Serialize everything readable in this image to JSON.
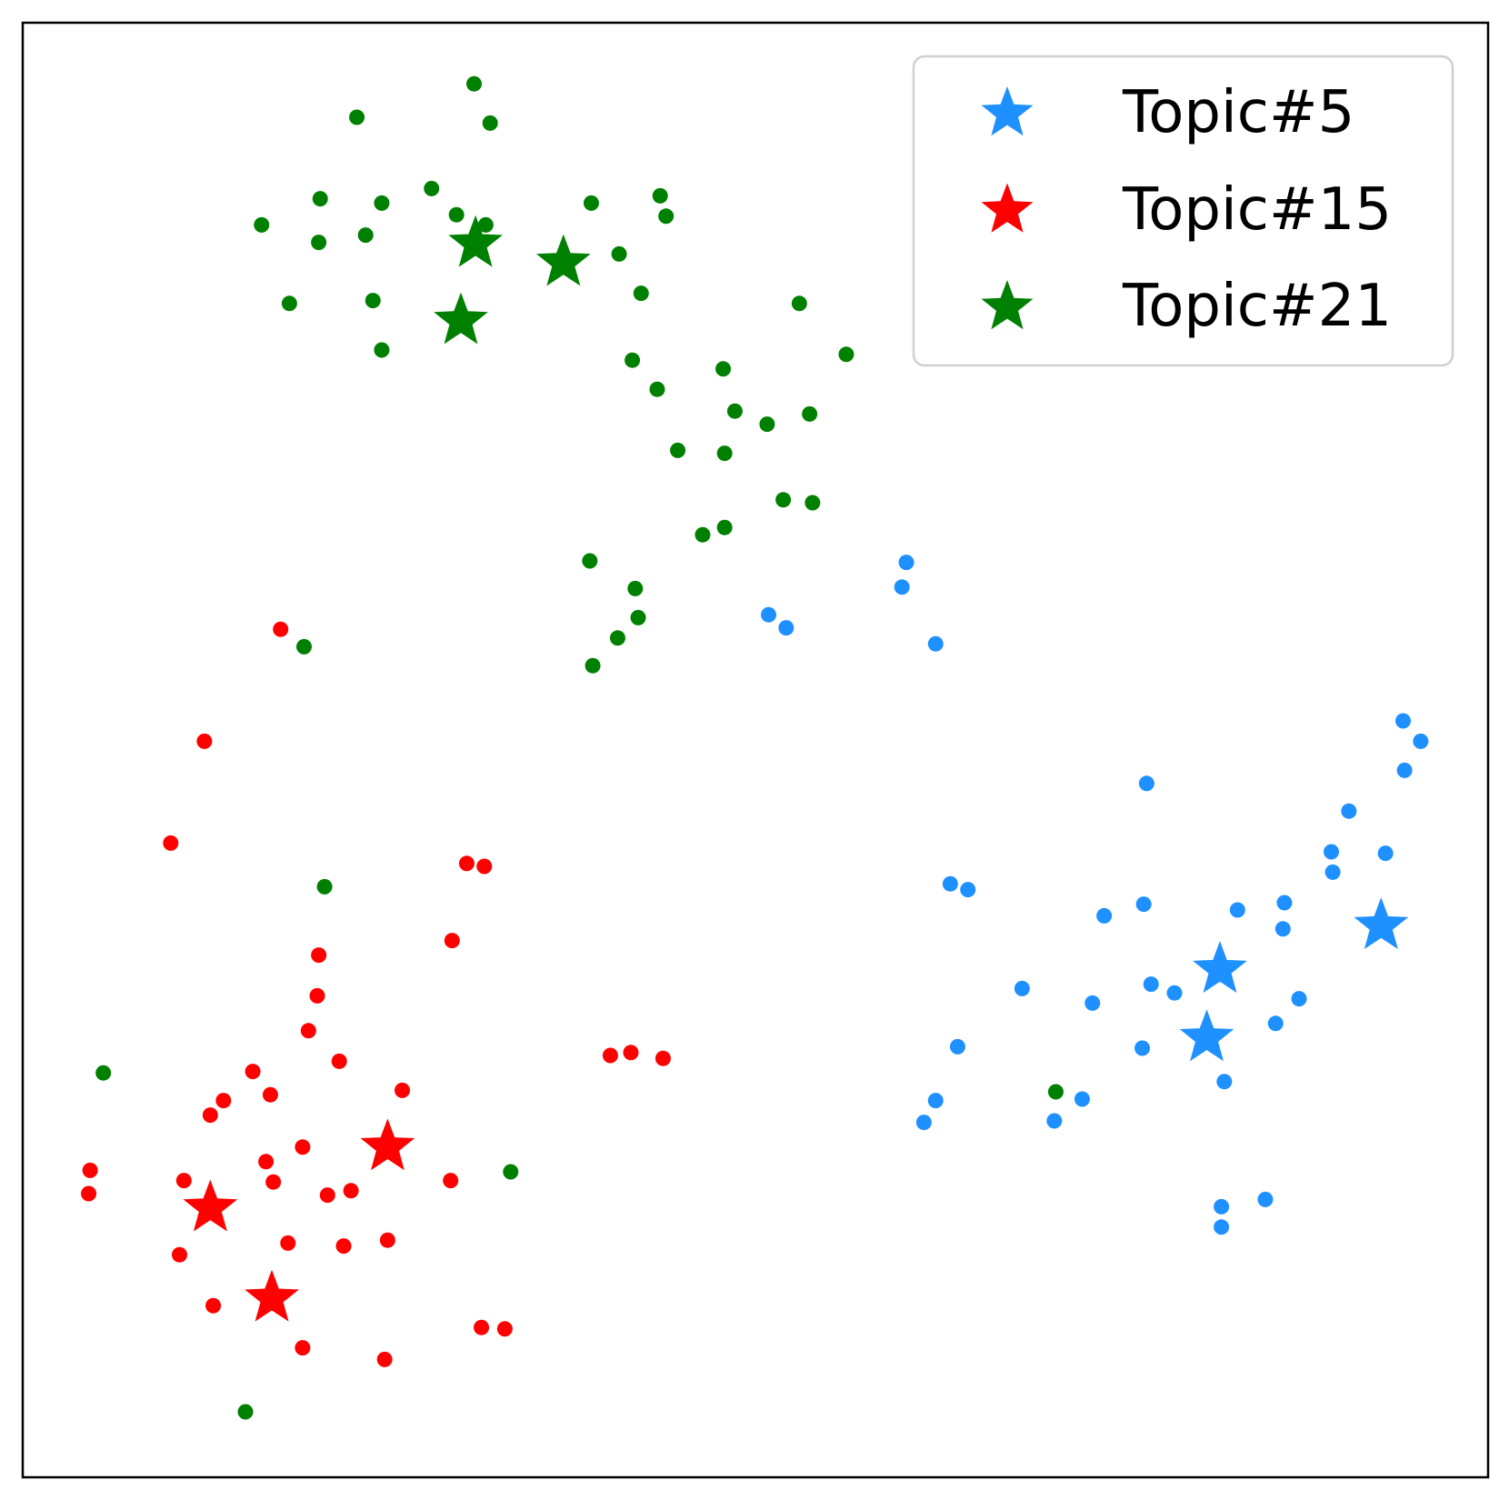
{
  "chart_data": {
    "type": "scatter",
    "title": "",
    "xlabel": "",
    "ylabel": "",
    "xlim": [
      0,
      100
    ],
    "ylim": [
      0,
      100
    ],
    "grid": false,
    "axes_ticks": false,
    "legend": {
      "placement": "top-right",
      "marker": "star"
    },
    "series": [
      {
        "name": "Topic#5",
        "color": "#1e90ff",
        "centroids": [
          [
            81.7,
            34.9
          ],
          [
            80.8,
            30.2
          ],
          [
            92.7,
            37.9
          ]
        ],
        "points": [
          [
            60.3,
            62.9
          ],
          [
            60.0,
            61.2
          ],
          [
            62.3,
            57.3
          ],
          [
            50.9,
            59.3
          ],
          [
            52.1,
            58.4
          ],
          [
            94.2,
            52.0
          ],
          [
            95.4,
            50.6
          ],
          [
            94.3,
            48.6
          ],
          [
            76.7,
            47.7
          ],
          [
            90.5,
            45.8
          ],
          [
            89.3,
            43.0
          ],
          [
            89.4,
            41.6
          ],
          [
            93.0,
            42.9
          ],
          [
            63.3,
            40.8
          ],
          [
            64.5,
            40.4
          ],
          [
            76.5,
            39.4
          ],
          [
            73.8,
            38.6
          ],
          [
            82.9,
            39.0
          ],
          [
            86.1,
            39.5
          ],
          [
            86.0,
            37.7
          ],
          [
            68.2,
            33.6
          ],
          [
            78.6,
            33.3
          ],
          [
            77.0,
            33.9
          ],
          [
            73.0,
            32.6
          ],
          [
            87.1,
            32.9
          ],
          [
            85.5,
            31.2
          ],
          [
            63.8,
            29.6
          ],
          [
            76.4,
            29.5
          ],
          [
            82.0,
            27.2
          ],
          [
            62.3,
            25.9
          ],
          [
            61.5,
            24.4
          ],
          [
            72.3,
            26.0
          ],
          [
            70.4,
            24.5
          ],
          [
            81.8,
            18.6
          ],
          [
            84.8,
            19.1
          ],
          [
            81.8,
            17.2
          ]
        ]
      },
      {
        "name": "Topic#15",
        "color": "#ff0000",
        "centroids": [
          [
            24.9,
            22.7
          ],
          [
            12.8,
            18.5
          ],
          [
            17.0,
            12.3
          ]
        ],
        "points": [
          [
            17.6,
            58.3
          ],
          [
            12.4,
            50.6
          ],
          [
            10.1,
            43.6
          ],
          [
            30.3,
            42.2
          ],
          [
            31.5,
            42.0
          ],
          [
            29.3,
            36.9
          ],
          [
            20.2,
            35.9
          ],
          [
            20.1,
            33.1
          ],
          [
            19.5,
            30.7
          ],
          [
            15.7,
            27.9
          ],
          [
            21.6,
            28.6
          ],
          [
            40.1,
            29.0
          ],
          [
            41.5,
            29.2
          ],
          [
            43.7,
            28.8
          ],
          [
            25.9,
            26.6
          ],
          [
            16.9,
            26.3
          ],
          [
            13.7,
            25.9
          ],
          [
            12.8,
            24.9
          ],
          [
            19.1,
            22.7
          ],
          [
            16.6,
            21.7
          ],
          [
            4.6,
            21.1
          ],
          [
            4.5,
            19.5
          ],
          [
            11.0,
            20.4
          ],
          [
            17.1,
            20.3
          ],
          [
            29.2,
            20.4
          ],
          [
            20.8,
            19.4
          ],
          [
            22.4,
            19.7
          ],
          [
            18.1,
            16.1
          ],
          [
            21.9,
            15.9
          ],
          [
            24.9,
            16.3
          ],
          [
            10.7,
            15.3
          ],
          [
            13.0,
            11.8
          ],
          [
            31.3,
            10.3
          ],
          [
            32.9,
            10.2
          ],
          [
            19.1,
            8.9
          ],
          [
            24.7,
            8.1
          ]
        ]
      },
      {
        "name": "Topic#21",
        "color": "#008000",
        "centroids": [
          [
            30.9,
            84.8
          ],
          [
            36.9,
            83.5
          ],
          [
            29.9,
            79.5
          ]
        ],
        "points": [
          [
            30.8,
            95.8
          ],
          [
            22.8,
            93.5
          ],
          [
            31.9,
            93.1
          ],
          [
            20.3,
            87.9
          ],
          [
            24.5,
            87.6
          ],
          [
            27.9,
            88.6
          ],
          [
            29.6,
            86.8
          ],
          [
            31.6,
            86.1
          ],
          [
            38.8,
            87.6
          ],
          [
            43.5,
            88.1
          ],
          [
            43.9,
            86.7
          ],
          [
            16.3,
            86.1
          ],
          [
            23.4,
            85.4
          ],
          [
            20.2,
            84.9
          ],
          [
            40.7,
            84.1
          ],
          [
            42.2,
            81.4
          ],
          [
            18.2,
            80.7
          ],
          [
            23.9,
            80.9
          ],
          [
            53.0,
            80.7
          ],
          [
            24.5,
            77.5
          ],
          [
            41.6,
            76.8
          ],
          [
            56.2,
            77.2
          ],
          [
            47.8,
            76.2
          ],
          [
            43.3,
            74.8
          ],
          [
            48.6,
            73.3
          ],
          [
            53.7,
            73.1
          ],
          [
            50.8,
            72.4
          ],
          [
            44.7,
            70.6
          ],
          [
            47.9,
            70.4
          ],
          [
            51.9,
            67.2
          ],
          [
            53.9,
            67.0
          ],
          [
            47.9,
            65.3
          ],
          [
            46.4,
            64.8
          ],
          [
            38.7,
            63.0
          ],
          [
            41.8,
            61.1
          ],
          [
            42.0,
            59.1
          ],
          [
            19.2,
            57.1
          ],
          [
            40.6,
            57.7
          ],
          [
            38.9,
            55.8
          ],
          [
            20.6,
            40.6
          ],
          [
            5.5,
            27.8
          ],
          [
            70.5,
            26.5
          ],
          [
            33.3,
            21.0
          ],
          [
            15.2,
            4.5
          ]
        ]
      }
    ]
  }
}
